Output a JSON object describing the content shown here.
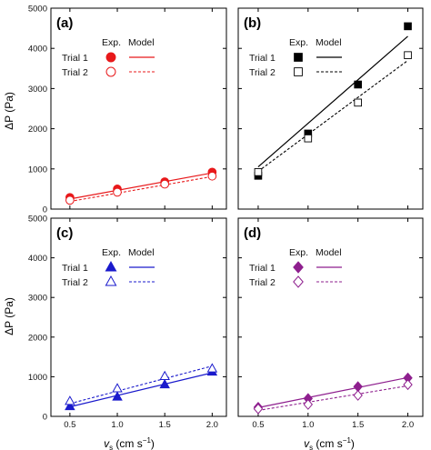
{
  "figure": {
    "y_axis_label": "ΔP (Pa)",
    "x_axis_label": "v_s (cm s^-1)",
    "x_axis_label_main": "v",
    "x_axis_label_sub": "s",
    "x_axis_label_unit": " (cm s",
    "x_axis_label_exp": "−1",
    "x_axis_label_close": ")"
  },
  "legend_text": {
    "exp": "Exp.",
    "model": "Model",
    "trial1": "Trial 1",
    "trial2": "Trial 2"
  },
  "chart_data": [
    {
      "type": "scatter",
      "panel_label": "(a)",
      "color": "#e8191b",
      "marker": "circle",
      "xlim": [
        0.3,
        2.15
      ],
      "ylim": [
        0,
        5000
      ],
      "x_ticks": [
        "0.5",
        "1.0",
        "1.5",
        "2.0"
      ],
      "y_ticks": [
        "0",
        "1000",
        "2000",
        "3000",
        "4000",
        "5000"
      ],
      "series": [
        {
          "name": "Trial 1",
          "kind": "exp",
          "fill": "filled",
          "x": [
            0.5,
            1.0,
            1.5,
            2.0
          ],
          "y": [
            290,
            500,
            680,
            920
          ]
        },
        {
          "name": "Trial 2",
          "kind": "exp",
          "fill": "open",
          "x": [
            0.5,
            1.0,
            1.5,
            2.0
          ],
          "y": [
            220,
            420,
            620,
            820
          ]
        },
        {
          "name": "Trial 1",
          "kind": "model",
          "line": "solid",
          "x": [
            0.5,
            2.0
          ],
          "y": [
            250,
            900
          ]
        },
        {
          "name": "Trial 2",
          "kind": "model",
          "line": "dashed",
          "x": [
            0.5,
            2.0
          ],
          "y": [
            190,
            810
          ]
        }
      ]
    },
    {
      "type": "scatter",
      "panel_label": "(b)",
      "color": "#000000",
      "marker": "square",
      "xlim": [
        0.3,
        2.15
      ],
      "ylim": [
        0,
        5000
      ],
      "x_ticks": [
        "0.5",
        "1.0",
        "1.5",
        "2.0"
      ],
      "y_ticks": [
        "0",
        "1000",
        "2000",
        "3000",
        "4000",
        "5000"
      ],
      "series": [
        {
          "name": "Trial 1",
          "kind": "exp",
          "fill": "filled",
          "x": [
            0.5,
            1.0,
            1.5,
            2.0
          ],
          "y": [
            830,
            1880,
            3100,
            4550
          ]
        },
        {
          "name": "Trial 2",
          "kind": "exp",
          "fill": "open",
          "x": [
            0.5,
            1.0,
            1.5,
            2.0
          ],
          "y": [
            920,
            1760,
            2650,
            3830
          ]
        },
        {
          "name": "Trial 1",
          "kind": "model",
          "line": "solid",
          "x": [
            0.5,
            2.0
          ],
          "y": [
            1050,
            4300
          ]
        },
        {
          "name": "Trial 2",
          "kind": "model",
          "line": "dashed",
          "x": [
            0.5,
            2.0
          ],
          "y": [
            940,
            3700
          ]
        }
      ]
    },
    {
      "type": "scatter",
      "panel_label": "(c)",
      "color": "#1a1acc",
      "marker": "triangle",
      "xlim": [
        0.3,
        2.15
      ],
      "ylim": [
        0,
        5000
      ],
      "x_ticks": [
        "0.5",
        "1.0",
        "1.5",
        "2.0"
      ],
      "y_ticks": [
        "0",
        "1000",
        "2000",
        "3000",
        "4000",
        "5000"
      ],
      "series": [
        {
          "name": "Trial 1",
          "kind": "exp",
          "fill": "filled",
          "x": [
            0.5,
            1.0,
            1.5,
            2.0
          ],
          "y": [
            250,
            490,
            800,
            1120
          ]
        },
        {
          "name": "Trial 2",
          "kind": "exp",
          "fill": "open",
          "x": [
            0.5,
            1.0,
            1.5,
            2.0
          ],
          "y": [
            380,
            700,
            1010,
            1200
          ]
        },
        {
          "name": "Trial 1",
          "kind": "model",
          "line": "solid",
          "x": [
            0.5,
            2.0
          ],
          "y": [
            240,
            1100
          ]
        },
        {
          "name": "Trial 2",
          "kind": "model",
          "line": "dashed",
          "x": [
            0.5,
            2.0
          ],
          "y": [
            320,
            1270
          ]
        }
      ]
    },
    {
      "type": "scatter",
      "panel_label": "(d)",
      "color": "#8e1f8e",
      "marker": "diamond",
      "xlim": [
        0.3,
        2.15
      ],
      "ylim": [
        0,
        5000
      ],
      "x_ticks": [
        "0.5",
        "1.0",
        "1.5",
        "2.0"
      ],
      "y_ticks": [
        "0",
        "1000",
        "2000",
        "3000",
        "4000",
        "5000"
      ],
      "series": [
        {
          "name": "Trial 1",
          "kind": "exp",
          "fill": "filled",
          "x": [
            0.5,
            1.0,
            1.5,
            2.0
          ],
          "y": [
            230,
            450,
            750,
            970
          ]
        },
        {
          "name": "Trial 2",
          "kind": "exp",
          "fill": "open",
          "x": [
            0.5,
            1.0,
            1.5,
            2.0
          ],
          "y": [
            190,
            300,
            530,
            800
          ]
        },
        {
          "name": "Trial 1",
          "kind": "model",
          "line": "solid",
          "x": [
            0.5,
            2.0
          ],
          "y": [
            220,
            980
          ]
        },
        {
          "name": "Trial 2",
          "kind": "model",
          "line": "dashed",
          "x": [
            0.5,
            2.0
          ],
          "y": [
            150,
            770
          ]
        }
      ]
    }
  ]
}
